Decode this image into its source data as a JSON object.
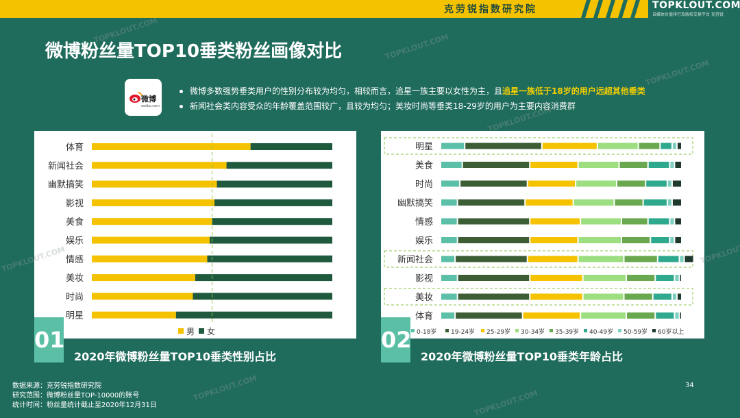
{
  "header": {
    "brand_cn": "克劳锐指数研究院",
    "logo_text": "TOPKLOUT.COM",
    "logo_sub": "自媒体价值排行及版权交易平台 克劳锐",
    "watermark": "TOPKLOUT.COM"
  },
  "page": {
    "title": "微博粉丝量TOP10垂类粉丝画像对比",
    "weibo_logo_text": "微博",
    "weibo_logo_sub": "weibo.com",
    "bullet1_a": "微博多数强势垂类用户的性别分布较为均匀，相较而言，追星一族主要以女性为主，且",
    "bullet1_b": "追星一族低于18岁的用户远超其他垂类",
    "bullet2": "新闻社会类内容受众的年龄覆盖范围较广，且较为均匀；美妆时尚等垂类18-29岁的用户为主要内容消费群",
    "page_number": "34"
  },
  "footer": {
    "line1": "数据来源：克劳锐指数研究院",
    "line2": "研究范围：微博粉丝量TOP-10000的账号",
    "line3": "统计时间：粉丝量统计截止至2020年12月31日"
  },
  "colors": {
    "background": "#1f6b5c",
    "yellow": "#f5c200",
    "dark_green": "#1f5a3e",
    "accent": "#5bbfa6"
  },
  "chart_data": [
    {
      "number": "01",
      "type": "bar",
      "stacked": true,
      "orientation": "horizontal",
      "title": "2020年微博粉丝量TOP10垂类性别占比",
      "categories": [
        "体育",
        "新闻社会",
        "幽默搞笑",
        "影视",
        "美食",
        "娱乐",
        "情感",
        "美妆",
        "时尚",
        "明星"
      ],
      "series": [
        {
          "name": "男",
          "color": "#f5c200",
          "values": [
            66,
            56,
            52,
            51,
            50,
            49,
            48,
            43,
            42,
            35
          ]
        },
        {
          "name": "女",
          "color": "#1f5a3e",
          "values": [
            34,
            44,
            48,
            49,
            50,
            51,
            52,
            57,
            58,
            65
          ]
        }
      ],
      "reference_line": 50,
      "xlim": [
        0,
        100
      ]
    },
    {
      "number": "02",
      "type": "bar",
      "stacked": true,
      "orientation": "horizontal",
      "title": "2020年微博粉丝量TOP10垂类年龄占比",
      "categories": [
        "明星",
        "美食",
        "时尚",
        "幽默搞笑",
        "情感",
        "娱乐",
        "新闻社会",
        "影视",
        "美妆",
        "体育"
      ],
      "highlighted": [
        "明星",
        "新闻社会",
        "美妆"
      ],
      "series": [
        {
          "name": "0-18岁",
          "color": "#5cbfa8",
          "values": [
            10,
            9,
            8,
            7,
            7,
            7,
            6,
            7,
            7,
            6
          ]
        },
        {
          "name": "19-24岁",
          "color": "#3d5e35",
          "values": [
            32,
            28,
            28,
            28,
            30,
            30,
            30,
            30,
            30,
            28
          ]
        },
        {
          "name": "25-29岁",
          "color": "#f5c200",
          "values": [
            23,
            20,
            20,
            20,
            21,
            20,
            21,
            22,
            22,
            24
          ]
        },
        {
          "name": "30-34岁",
          "color": "#9cde80",
          "values": [
            17,
            17,
            17,
            17,
            17,
            18,
            19,
            18,
            17,
            19
          ]
        },
        {
          "name": "35-39岁",
          "color": "#6aa84f",
          "values": [
            9,
            12,
            12,
            12,
            11,
            12,
            14,
            12,
            12,
            12
          ]
        },
        {
          "name": "40-49岁",
          "color": "#2fa98e",
          "values": [
            5,
            9,
            9,
            10,
            9,
            8,
            9,
            8,
            8,
            8
          ]
        },
        {
          "name": "50-59岁",
          "color": "#7ccfbe",
          "values": [
            2,
            2,
            2,
            2,
            2,
            2,
            2,
            2,
            2,
            2
          ]
        },
        {
          "name": "60岁以上",
          "color": "#1f3a2c",
          "values": [
            2,
            3,
            4,
            4,
            3,
            3,
            4,
            1,
            2,
            1
          ]
        }
      ],
      "xlim": [
        0,
        100
      ]
    }
  ]
}
